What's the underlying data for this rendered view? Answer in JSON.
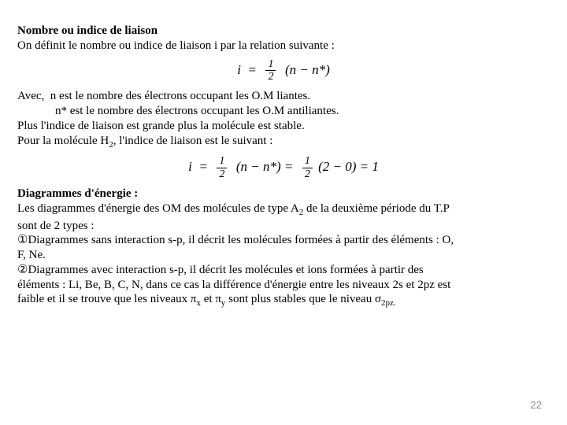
{
  "heading1": "Nombre ou indice de liaison",
  "intro": "On définit le nombre ou indice de liaison i par la relation suivante :",
  "eq1": {
    "lhs": "i",
    "eq": "=",
    "num": "1",
    "den": "2",
    "rhs": "(n − n*)"
  },
  "avec_label": "Avec,",
  "avec_line1": "n est le nombre des électrons occupant les O.M liantes.",
  "avec_line2": "n* est le nombre des électrons occupant les O.M antiliantes.",
  "plus_line": "Plus l'indice de liaison est grande plus la molécule est stable.",
  "pour_prefix": "Pour la molécule H",
  "pour_sub": "2",
  "pour_suffix": ", l'indice de liaison est le suivant :",
  "eq2": {
    "lhs": "i",
    "eq": "=",
    "num1": "1",
    "den1": "2",
    "mid1": "(n − n*) =",
    "num2": "1",
    "den2": "2",
    "mid2": "(2 − 0) = 1"
  },
  "heading2": "Diagrammes d'énergie  :",
  "les_prefix": "Les diagrammes d'énergie des OM des molécules de type A",
  "les_sub": "2",
  "les_mid": " de la deuxième période du T.P",
  "les_line2": "sont de 2 types :",
  "bullet1_sym": "①",
  "bullet1a": "Diagrammes sans interaction s-p, il décrit les molécules formées à partir des éléments : O,",
  "bullet1b": "F, Ne.",
  "bullet2_sym": "②",
  "bullet2a": "Diagrammes avec interaction s-p, il décrit les molécules et ions formées à partir des",
  "bullet2b": "éléments : Li, Be, B, C, N, dans ce cas la différence d'énergie entre les niveaux 2s et 2pz est",
  "bullet2c_pre": "faible et il se trouve que les niveaux π",
  "bullet2c_subx": "x",
  "bullet2c_mid": " et π",
  "bullet2c_suby": "y",
  "bullet2c_mid2": " sont plus stables que le niveau σ",
  "bullet2c_subz": "2pz.",
  "page_number": "22"
}
